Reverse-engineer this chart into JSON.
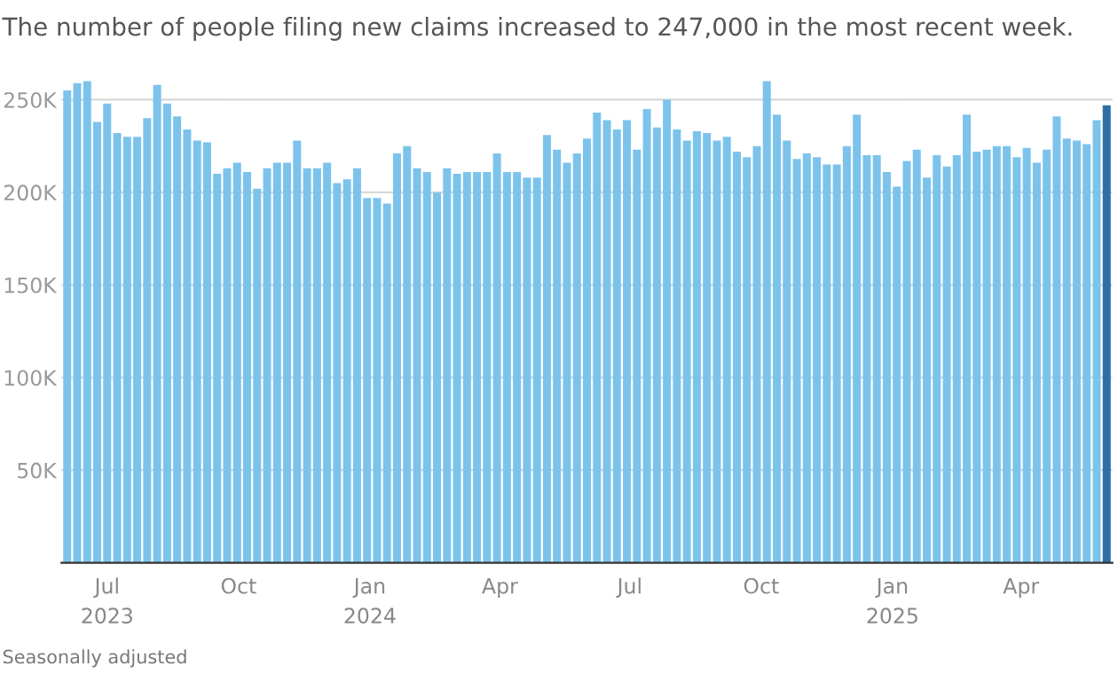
{
  "chart_data": {
    "type": "bar",
    "title": "The number of people filing new claims increased to 247,000 in the most recent week.",
    "annotations": [
      "Seasonally adjusted"
    ],
    "x": [
      "2023-06-03",
      "2023-06-10",
      "2023-06-17",
      "2023-06-24",
      "2023-07-01",
      "2023-07-08",
      "2023-07-15",
      "2023-07-22",
      "2023-07-29",
      "2023-08-05",
      "2023-08-12",
      "2023-08-19",
      "2023-08-26",
      "2023-09-02",
      "2023-09-09",
      "2023-09-16",
      "2023-09-23",
      "2023-09-30",
      "2023-10-07",
      "2023-10-14",
      "2023-10-21",
      "2023-10-28",
      "2023-11-04",
      "2023-11-11",
      "2023-11-18",
      "2023-11-25",
      "2023-12-02",
      "2023-12-09",
      "2023-12-16",
      "2023-12-23",
      "2023-12-30",
      "2024-01-06",
      "2024-01-13",
      "2024-01-20",
      "2024-01-27",
      "2024-02-03",
      "2024-02-10",
      "2024-02-17",
      "2024-02-24",
      "2024-03-02",
      "2024-03-09",
      "2024-03-16",
      "2024-03-23",
      "2024-03-30",
      "2024-04-06",
      "2024-04-13",
      "2024-04-20",
      "2024-04-27",
      "2024-05-04",
      "2024-05-11",
      "2024-05-18",
      "2024-05-25",
      "2024-06-01",
      "2024-06-08",
      "2024-06-15",
      "2024-06-22",
      "2024-06-29",
      "2024-07-06",
      "2024-07-13",
      "2024-07-20",
      "2024-07-27",
      "2024-08-03",
      "2024-08-10",
      "2024-08-17",
      "2024-08-24",
      "2024-08-31",
      "2024-09-07",
      "2024-09-14",
      "2024-09-21",
      "2024-09-28",
      "2024-10-05",
      "2024-10-12",
      "2024-10-19",
      "2024-10-26",
      "2024-11-02",
      "2024-11-09",
      "2024-11-16",
      "2024-11-23",
      "2024-11-30",
      "2024-12-07",
      "2024-12-14",
      "2024-12-21",
      "2024-12-28",
      "2025-01-04",
      "2025-01-11",
      "2025-01-18",
      "2025-01-25",
      "2025-02-01",
      "2025-02-08",
      "2025-02-15",
      "2025-02-22",
      "2025-03-01",
      "2025-03-08",
      "2025-03-15",
      "2025-03-22",
      "2025-03-29",
      "2025-04-05",
      "2025-04-12",
      "2025-04-19",
      "2025-04-26",
      "2025-05-03",
      "2025-05-10",
      "2025-05-17",
      "2025-05-24",
      "2025-05-31"
    ],
    "values": [
      255000,
      259000,
      260000,
      238000,
      248000,
      232000,
      230000,
      230000,
      240000,
      258000,
      248000,
      241000,
      234000,
      228000,
      227000,
      210000,
      213000,
      216000,
      211000,
      202000,
      213000,
      216000,
      216000,
      228000,
      213000,
      213000,
      216000,
      205000,
      207000,
      213000,
      197000,
      197000,
      194000,
      221000,
      225000,
      213000,
      211000,
      200000,
      213000,
      210000,
      211000,
      211000,
      211000,
      221000,
      211000,
      211000,
      208000,
      208000,
      231000,
      223000,
      216000,
      221000,
      229000,
      243000,
      239000,
      234000,
      239000,
      223000,
      245000,
      235000,
      250000,
      234000,
      228000,
      233000,
      232000,
      228000,
      230000,
      222000,
      219000,
      225000,
      260000,
      242000,
      228000,
      218000,
      221000,
      219000,
      215000,
      215000,
      225000,
      242000,
      220000,
      220000,
      211000,
      203000,
      217000,
      223000,
      208000,
      220000,
      214000,
      220000,
      242000,
      222000,
      223000,
      225000,
      225000,
      219000,
      224000,
      216000,
      223000,
      241000,
      229000,
      228000,
      226000,
      239000,
      247000
    ],
    "colors": [
      "#7cc3ec",
      "#7cc3ec",
      "#7cc3ec",
      "#7cc3ec",
      "#7cc3ec",
      "#7cc3ec",
      "#7cc3ec",
      "#7cc3ec",
      "#7cc3ec",
      "#7cc3ec",
      "#7cc3ec",
      "#7cc3ec",
      "#7cc3ec",
      "#7cc3ec",
      "#7cc3ec",
      "#7cc3ec",
      "#7cc3ec",
      "#7cc3ec",
      "#7cc3ec",
      "#7cc3ec",
      "#7cc3ec",
      "#7cc3ec",
      "#7cc3ec",
      "#7cc3ec",
      "#7cc3ec",
      "#7cc3ec",
      "#7cc3ec",
      "#7cc3ec",
      "#7cc3ec",
      "#7cc3ec",
      "#7cc3ec",
      "#7cc3ec",
      "#7cc3ec",
      "#7cc3ec",
      "#7cc3ec",
      "#7cc3ec",
      "#7cc3ec",
      "#7cc3ec",
      "#7cc3ec",
      "#7cc3ec",
      "#7cc3ec",
      "#7cc3ec",
      "#7cc3ec",
      "#7cc3ec",
      "#7cc3ec",
      "#7cc3ec",
      "#7cc3ec",
      "#7cc3ec",
      "#7cc3ec",
      "#7cc3ec",
      "#7cc3ec",
      "#7cc3ec",
      "#7cc3ec",
      "#7cc3ec",
      "#7cc3ec",
      "#7cc3ec",
      "#7cc3ec",
      "#7cc3ec",
      "#7cc3ec",
      "#7cc3ec",
      "#7cc3ec",
      "#7cc3ec",
      "#7cc3ec",
      "#7cc3ec",
      "#7cc3ec",
      "#7cc3ec",
      "#7cc3ec",
      "#7cc3ec",
      "#7cc3ec",
      "#7cc3ec",
      "#7cc3ec",
      "#7cc3ec",
      "#7cc3ec",
      "#7cc3ec",
      "#7cc3ec",
      "#7cc3ec",
      "#7cc3ec",
      "#7cc3ec",
      "#7cc3ec",
      "#7cc3ec",
      "#7cc3ec",
      "#7cc3ec",
      "#7cc3ec",
      "#7cc3ec",
      "#7cc3ec",
      "#7cc3ec",
      "#7cc3ec",
      "#7cc3ec",
      "#7cc3ec",
      "#7cc3ec",
      "#7cc3ec",
      "#7cc3ec",
      "#7cc3ec",
      "#7cc3ec",
      "#7cc3ec",
      "#7cc3ec",
      "#7cc3ec",
      "#7cc3ec",
      "#7cc3ec",
      "#7cc3ec",
      "#7cc3ec",
      "#7cc3ec",
      "#7cc3ec",
      "#7cc3ec",
      "#2e6fa7"
    ],
    "xlim": [
      "2023-05-30",
      "2025-06-04"
    ],
    "xticks": [
      {
        "value": "2023-07-01",
        "label": "Jul\n2023"
      },
      {
        "value": "2023-10-01",
        "label": "Oct"
      },
      {
        "value": "2024-01-01",
        "label": "Jan\n2024"
      },
      {
        "value": "2024-04-01",
        "label": "Apr"
      },
      {
        "value": "2024-07-01",
        "label": "Jul"
      },
      {
        "value": "2024-10-01",
        "label": "Oct"
      },
      {
        "value": "2025-01-01",
        "label": "Jan\n2025"
      },
      {
        "value": "2025-04-01",
        "label": "Apr"
      }
    ],
    "ylim": [
      0,
      262000
    ],
    "yticks": [
      {
        "value": 0,
        "label": null
      },
      {
        "value": 50000,
        "label": "50K"
      },
      {
        "value": 100000,
        "label": "100K"
      },
      {
        "value": 150000,
        "label": "150K"
      },
      {
        "value": 200000,
        "label": "200K"
      },
      {
        "value": 250000,
        "label": "250K"
      }
    ],
    "grid": "y",
    "legend": false
  }
}
